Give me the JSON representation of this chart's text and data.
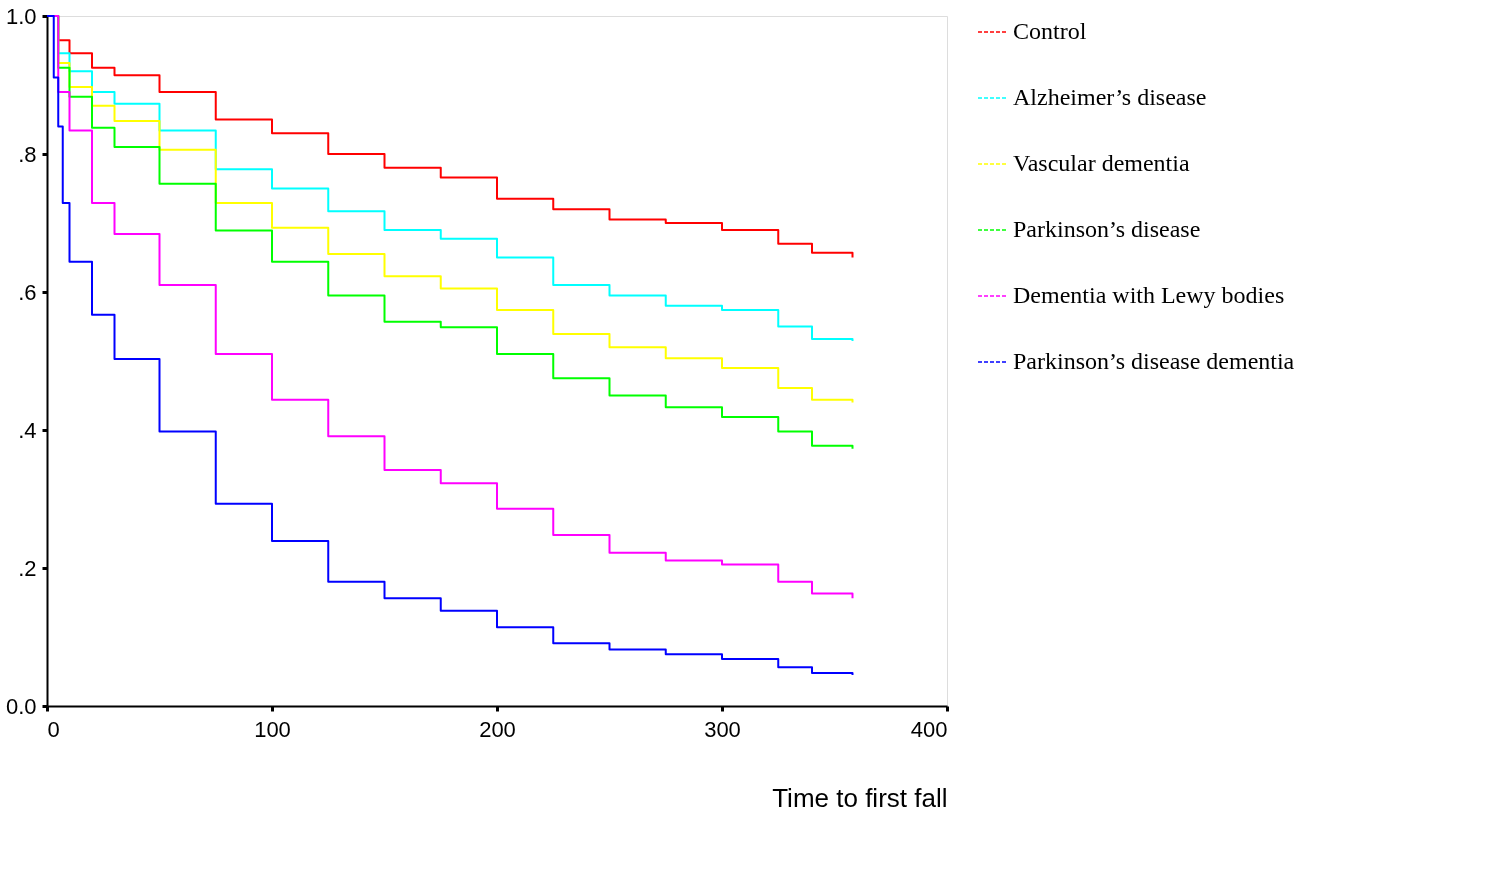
{
  "chart_data": {
    "type": "step",
    "xlabel": "Time to first fall",
    "x": [
      0,
      5,
      10,
      20,
      30,
      50,
      75,
      100,
      125,
      150,
      175,
      200,
      225,
      250,
      275,
      300,
      325,
      340,
      358
    ],
    "series": [
      {
        "name": "Control",
        "color": "#ff0000",
        "values": [
          1.0,
          0.965,
          0.946,
          0.925,
          0.914,
          0.89,
          0.85,
          0.83,
          0.8,
          0.78,
          0.766,
          0.735,
          0.72,
          0.705,
          0.7,
          0.69,
          0.67,
          0.657,
          0.65
        ]
      },
      {
        "name": "Alzheimer’s disease",
        "color": "#00ffff",
        "values": [
          1.0,
          0.946,
          0.92,
          0.89,
          0.873,
          0.834,
          0.778,
          0.75,
          0.717,
          0.69,
          0.677,
          0.65,
          0.61,
          0.595,
          0.58,
          0.574,
          0.55,
          0.532,
          0.529
        ]
      },
      {
        "name": "Vascular dementia",
        "color": "#ffff00",
        "values": [
          1.0,
          0.932,
          0.897,
          0.87,
          0.848,
          0.806,
          0.729,
          0.693,
          0.655,
          0.623,
          0.605,
          0.574,
          0.539,
          0.52,
          0.504,
          0.49,
          0.461,
          0.444,
          0.44
        ]
      },
      {
        "name": "Parkinson’s disease",
        "color": "#00ff00",
        "values": [
          1.0,
          0.925,
          0.883,
          0.838,
          0.81,
          0.757,
          0.689,
          0.644,
          0.595,
          0.557,
          0.549,
          0.51,
          0.475,
          0.45,
          0.433,
          0.419,
          0.398,
          0.377,
          0.373
        ]
      },
      {
        "name": "Dementia with Lewy   bodies",
        "color": "#ff00ff",
        "values": [
          1.0,
          0.89,
          0.834,
          0.729,
          0.684,
          0.61,
          0.51,
          0.444,
          0.391,
          0.342,
          0.323,
          0.286,
          0.248,
          0.222,
          0.211,
          0.205,
          0.18,
          0.163,
          0.156
        ]
      },
      {
        "name": "Parkinson’s disease dementia",
        "color": "#0000ff",
        "x": [
          0,
          3,
          5,
          7,
          10,
          20,
          30,
          50,
          75,
          100,
          125,
          150,
          175,
          200,
          225,
          250,
          275,
          300,
          325,
          340,
          358
        ],
        "values": [
          1.0,
          0.911,
          0.84,
          0.729,
          0.644,
          0.567,
          0.503,
          0.398,
          0.293,
          0.239,
          0.18,
          0.156,
          0.138,
          0.114,
          0.091,
          0.082,
          0.075,
          0.068,
          0.056,
          0.048,
          0.045
        ]
      }
    ],
    "xlim": [
      0,
      400
    ],
    "xticks": [
      0,
      100,
      200,
      300,
      400
    ],
    "ylim": [
      0,
      1.0
    ],
    "yticks": [
      {
        "value": 0,
        "label": "0.0"
      },
      {
        "value": 0.2,
        "label": ".2"
      },
      {
        "value": 0.4,
        "label": ".4"
      },
      {
        "value": 0.6,
        "label": ".6"
      },
      {
        "value": 0.8,
        "label": ".8"
      },
      {
        "value": 1.0,
        "label": "1.0"
      }
    ],
    "legend": "top right",
    "grid": false,
    "line_style": "solid",
    "marker": "none"
  }
}
